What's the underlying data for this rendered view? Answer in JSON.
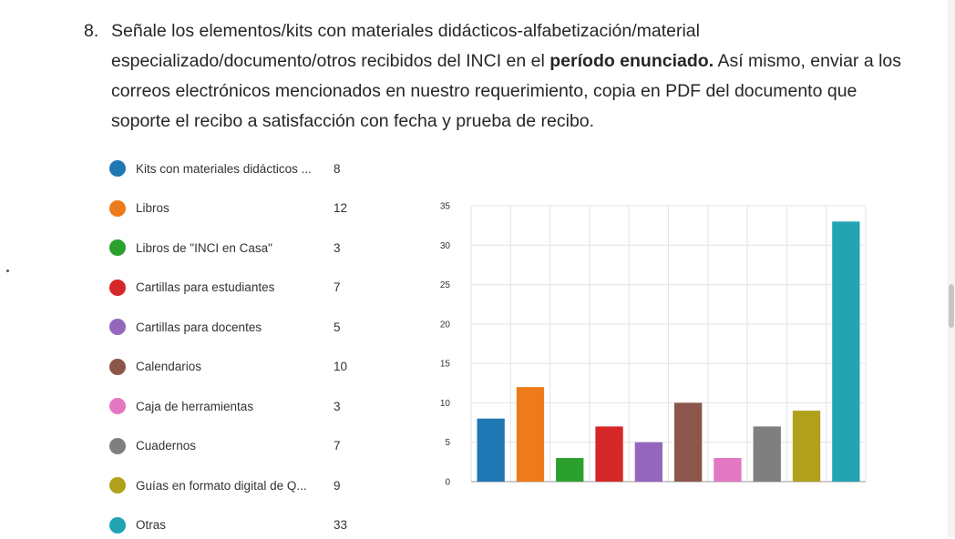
{
  "question": {
    "number": "8.",
    "text_before_bold": "Señale los elementos/kits con materiales didácticos-alfabetización/material especializado/documento/otros recibidos del INCI en el ",
    "bold": "período enunciado.",
    "text_after_bold": " Así mismo, enviar a los correos electrónicos mencionados en nuestro requerimiento, copia en PDF del documento que soporte el recibo a satisfacción con fecha y prueba de recibo."
  },
  "chart_data": {
    "type": "bar",
    "title": "",
    "xlabel": "",
    "ylabel": "",
    "ylim": [
      0,
      35
    ],
    "yticks": [
      0,
      5,
      10,
      15,
      20,
      25,
      30,
      35
    ],
    "grid": true,
    "legend_placement": "left",
    "categories": [
      "Kits con materiales didácticos ...",
      "Libros",
      "Libros de \"INCI en Casa\"",
      "Cartillas para estudiantes",
      "Cartillas para docentes",
      "Calendarios",
      "Caja de herramientas",
      "Cuadernos",
      "Guías en formato digital de Q...",
      "Otras"
    ],
    "values": [
      8,
      12,
      3,
      7,
      5,
      10,
      3,
      7,
      9,
      33
    ],
    "colors": [
      "#1f77b4",
      "#ee7b1a",
      "#2ca02c",
      "#d62728",
      "#9467bd",
      "#8c564b",
      "#e377c2",
      "#7f7f7f",
      "#b0a01c",
      "#22a4b3"
    ]
  }
}
